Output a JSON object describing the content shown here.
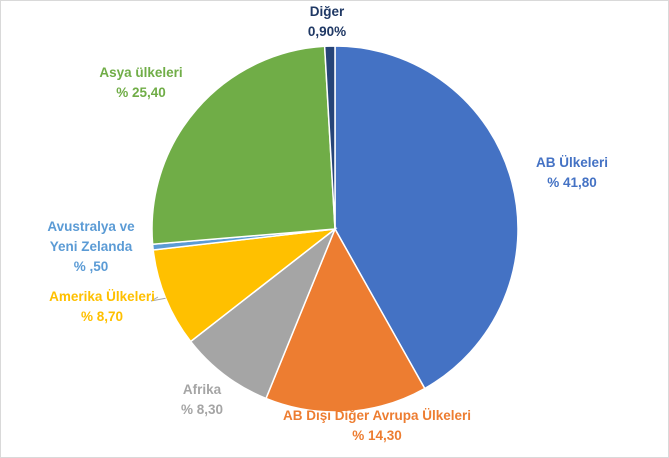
{
  "chart_data": {
    "type": "pie",
    "title": "",
    "slices": [
      {
        "name": "AB Ülkeleri",
        "value_text": "% 41,80",
        "value": 41.8,
        "color": "#4472c4",
        "label_color": "#4472c4"
      },
      {
        "name": "AB Dışı Diğer Avrupa Ülkeleri",
        "value_text": "% 14,30",
        "value": 14.3,
        "color": "#ed7d31",
        "label_color": "#ed7d31"
      },
      {
        "name": "Afrika",
        "value_text": "% 8,30",
        "value": 8.3,
        "color": "#a5a5a5",
        "label_color": "#a5a5a5"
      },
      {
        "name": "Amerika Ülkeleri",
        "value_text": "% 8,70",
        "value": 8.7,
        "color": "#ffc000",
        "label_color": "#ffc000"
      },
      {
        "name": "Avustralya ve Yeni Zelanda",
        "value_text": "% ,50",
        "value": 0.5,
        "color": "#5b9bd5",
        "label_color": "#5b9bd5"
      },
      {
        "name": "Asya ülkeleri",
        "value_text": "% 25,40",
        "value": 25.4,
        "color": "#70ad47",
        "label_color": "#70ad47"
      },
      {
        "name": "Diğer",
        "value_text": "0,90%",
        "value": 0.9,
        "color": "#264478",
        "label_color": "#1f3864"
      }
    ]
  }
}
